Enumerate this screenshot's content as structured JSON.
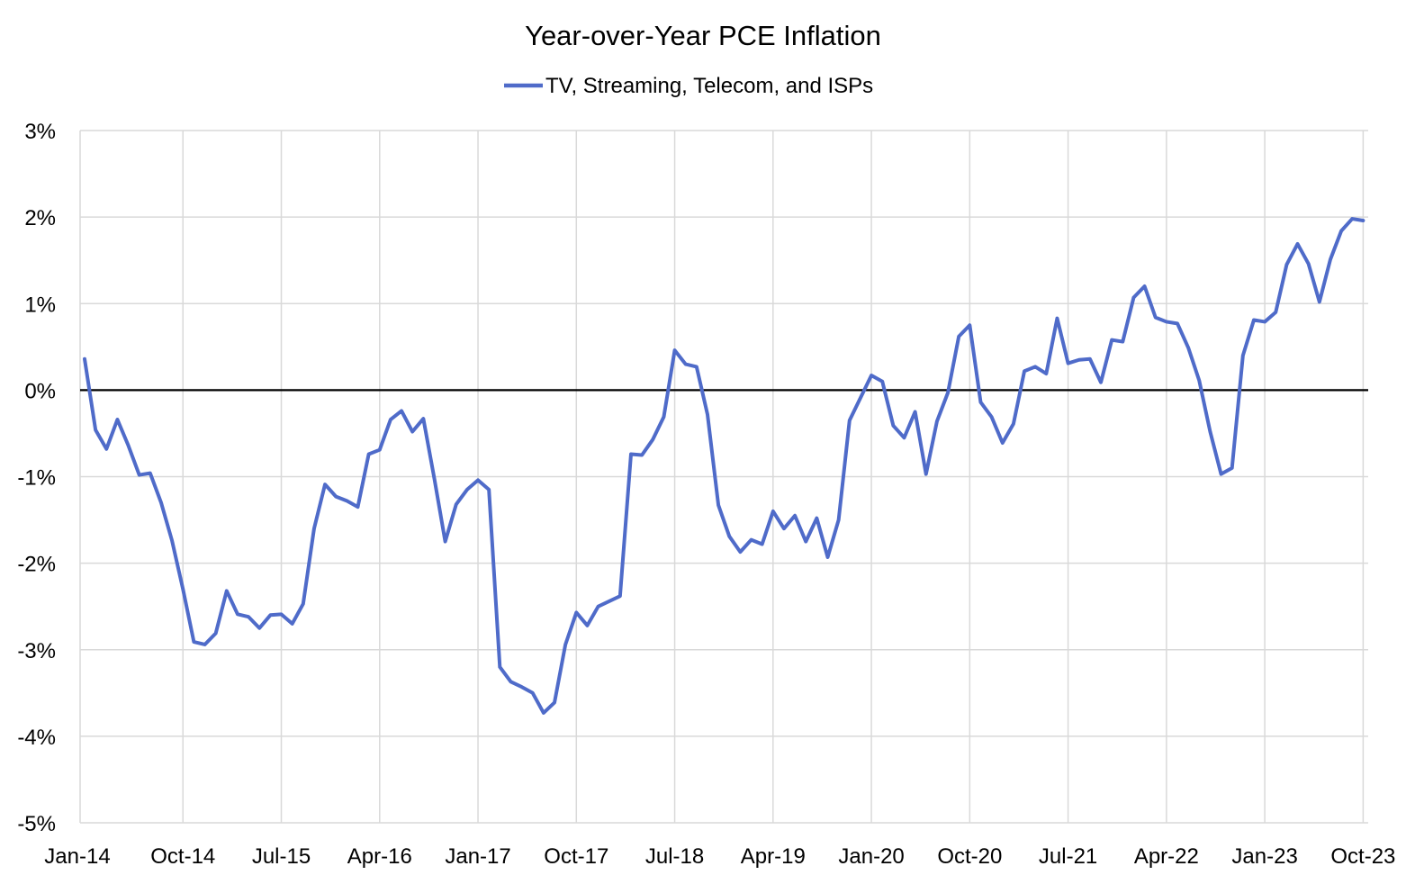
{
  "chart_data": {
    "type": "line",
    "title": "Year-over-Year PCE Inflation",
    "xlabel": "",
    "ylabel": "",
    "ylim": [
      -5,
      3
    ],
    "y_ticks": [
      3,
      2,
      1,
      0,
      -1,
      -2,
      -3,
      -4,
      -5
    ],
    "y_tick_labels": [
      "3%",
      "2%",
      "1%",
      "0%",
      "-1%",
      "-2%",
      "-3%",
      "-4%",
      "-5%"
    ],
    "x_tick_labels": [
      "Jan-14",
      "Oct-14",
      "Jul-15",
      "Apr-16",
      "Jan-17",
      "Oct-17",
      "Jul-18",
      "Apr-19",
      "Jan-20",
      "Oct-20",
      "Jul-21",
      "Apr-22",
      "Jan-23",
      "Oct-23"
    ],
    "x_start": "Jan-14",
    "x_tick_interval_months": 9,
    "grid": true,
    "legend_position": "top-center",
    "series": [
      {
        "name": "TV, Streaming, Telecom, and ISPs",
        "color": "#4f6bc9",
        "values": [
          0.36,
          -0.46,
          -0.68,
          -0.34,
          -0.64,
          -0.98,
          -0.96,
          -1.3,
          -1.74,
          -2.3,
          -2.91,
          -2.94,
          -2.81,
          -2.32,
          -2.59,
          -2.62,
          -2.75,
          -2.6,
          -2.59,
          -2.7,
          -2.47,
          -1.6,
          -1.09,
          -1.23,
          -1.28,
          -1.35,
          -0.74,
          -0.69,
          -0.34,
          -0.24,
          -0.48,
          -0.33,
          -1.02,
          -1.75,
          -1.32,
          -1.15,
          -1.04,
          -1.15,
          -3.2,
          -3.37,
          -3.43,
          -3.5,
          -3.73,
          -3.61,
          -2.94,
          -2.57,
          -2.72,
          -2.5,
          -2.44,
          -2.38,
          -0.74,
          -0.75,
          -0.57,
          -0.31,
          0.46,
          0.3,
          0.27,
          -0.28,
          -1.33,
          -1.69,
          -1.87,
          -1.73,
          -1.78,
          -1.4,
          -1.6,
          -1.45,
          -1.75,
          -1.48,
          -1.93,
          -1.5,
          -0.35,
          -0.09,
          0.17,
          0.1,
          -0.41,
          -0.55,
          -0.25,
          -0.97,
          -0.36,
          -0.03,
          0.62,
          0.75,
          -0.14,
          -0.31,
          -0.61,
          -0.39,
          0.22,
          0.27,
          0.19,
          0.83,
          0.31,
          0.35,
          0.36,
          0.09,
          0.58,
          0.56,
          1.07,
          1.2,
          0.84,
          0.79,
          0.77,
          0.49,
          0.11,
          -0.48,
          -0.97,
          -0.9,
          0.4,
          0.81,
          0.79,
          0.9,
          1.45,
          1.69,
          1.46,
          1.02,
          1.51,
          1.84,
          1.98,
          1.96
        ]
      }
    ]
  }
}
